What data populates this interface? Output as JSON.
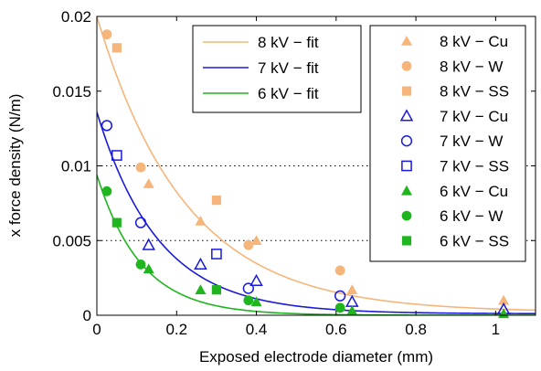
{
  "chart_data": {
    "type": "scatter",
    "title": "",
    "xlabel": "Exposed electrode diameter (mm)",
    "ylabel": "x force density (N/m)",
    "xlim": [
      0,
      1.1
    ],
    "ylim": [
      0,
      0.02
    ],
    "xticks": [
      0,
      0.2,
      0.4,
      0.6,
      0.8,
      1
    ],
    "xtick_labels": [
      "0",
      "0.2",
      "0.4",
      "0.6",
      "0.8",
      "1"
    ],
    "yticks": [
      0,
      0.005,
      0.01,
      0.015,
      0.02
    ],
    "ytick_labels": [
      "0",
      "0.005",
      "0.01",
      "0.015",
      "0.02"
    ],
    "hgrid_dotted": [
      0.005,
      0.01
    ],
    "colors": {
      "8kV": "#f6b57a",
      "7kV": "#1a1adb",
      "6kV": "#1eb51e"
    },
    "fits": [
      {
        "name": "8 kV − fit",
        "color": "#f6b57a",
        "a": 0.0198,
        "b": 4.5,
        "c": 0.0002
      },
      {
        "name": "7 kV − fit",
        "color": "#1a1adb",
        "a": 0.0135,
        "b": 6.5,
        "c": 0.0001
      },
      {
        "name": "6 kV − fit",
        "color": "#1eb51e",
        "a": 0.0094,
        "b": 9.0,
        "c": 0.0
      }
    ],
    "series": [
      {
        "name": "8 kV − Cu",
        "color": "#f6b57a",
        "marker": "triangle",
        "filled": true,
        "x": [
          0.13,
          0.26,
          0.4,
          0.64,
          1.02
        ],
        "y": [
          0.0088,
          0.0063,
          0.005,
          0.0017,
          0.001
        ]
      },
      {
        "name": "8 kV − W",
        "color": "#f6b57a",
        "marker": "circle",
        "filled": true,
        "x": [
          0.025,
          0.11,
          0.38,
          0.61
        ],
        "y": [
          0.0188,
          0.0099,
          0.0047,
          0.003
        ]
      },
      {
        "name": "8 kV − SS",
        "color": "#f6b57a",
        "marker": "square",
        "filled": true,
        "x": [
          0.05,
          0.3
        ],
        "y": [
          0.0179,
          0.0077
        ]
      },
      {
        "name": "7 kV − Cu",
        "color": "#1a1adb",
        "marker": "triangle",
        "filled": false,
        "x": [
          0.13,
          0.26,
          0.4,
          0.64,
          1.02
        ],
        "y": [
          0.0047,
          0.0034,
          0.0023,
          0.0009,
          0.0004
        ]
      },
      {
        "name": "7 kV − W",
        "color": "#1a1adb",
        "marker": "circle",
        "filled": false,
        "x": [
          0.025,
          0.11,
          0.38,
          0.61
        ],
        "y": [
          0.0127,
          0.0062,
          0.0018,
          0.0013
        ]
      },
      {
        "name": "7 kV − SS",
        "color": "#1a1adb",
        "marker": "square",
        "filled": false,
        "x": [
          0.05,
          0.3
        ],
        "y": [
          0.0107,
          0.0041
        ]
      },
      {
        "name": "6 kV − Cu",
        "color": "#1eb51e",
        "marker": "triangle",
        "filled": true,
        "x": [
          0.13,
          0.26,
          0.4,
          0.64,
          1.02
        ],
        "y": [
          0.0031,
          0.0017,
          0.0009,
          0.0003,
          0.0001
        ]
      },
      {
        "name": "6 kV − W",
        "color": "#1eb51e",
        "marker": "circle",
        "filled": true,
        "x": [
          0.025,
          0.11,
          0.38,
          0.61
        ],
        "y": [
          0.0083,
          0.0034,
          0.001,
          0.0005
        ]
      },
      {
        "name": "6 kV − SS",
        "color": "#1eb51e",
        "marker": "square",
        "filled": true,
        "x": [
          0.05,
          0.3
        ],
        "y": [
          0.0062,
          0.0017
        ]
      }
    ],
    "legends": [
      {
        "placement": "top-center",
        "entries": [
          "8 kV − fit",
          "7 kV − fit",
          "6 kV − fit"
        ]
      },
      {
        "placement": "right",
        "entries": [
          "8 kV − Cu",
          "8 kV − W",
          "8 kV − SS",
          "7 kV − Cu",
          "7 kV − W",
          "7 kV − SS",
          "6 kV − Cu",
          "6 kV − W",
          "6 kV − SS"
        ]
      }
    ]
  }
}
